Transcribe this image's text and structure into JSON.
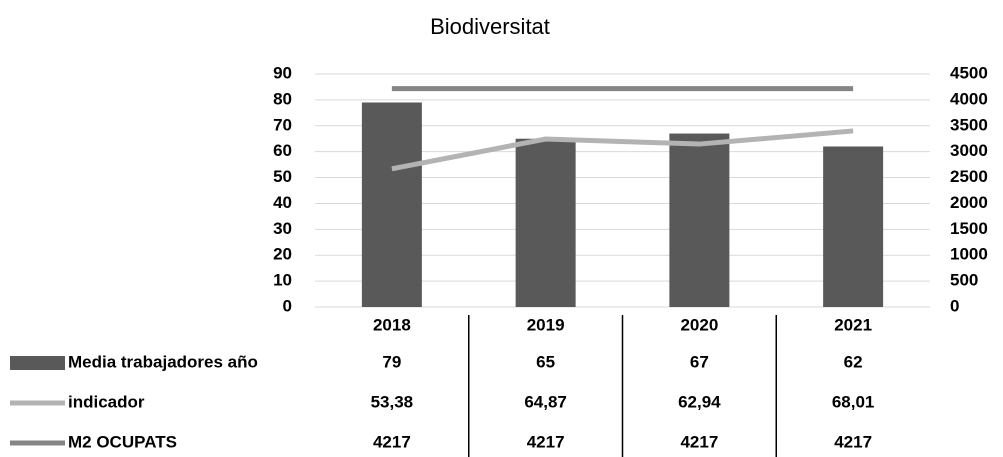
{
  "chart_data": {
    "type": "bar",
    "title": "Biodiversitat",
    "categories": [
      "2018",
      "2019",
      "2020",
      "2021"
    ],
    "series": [
      {
        "name": "Media trabajadores año",
        "type": "bar",
        "color": "#595959",
        "values": [
          79,
          65,
          67,
          62
        ]
      },
      {
        "name": "indicador",
        "type": "line",
        "color": "#b3b3b3",
        "values": [
          53.38,
          64.87,
          62.94,
          68.01
        ],
        "value_labels": [
          "53,38",
          "64,87",
          "62,94",
          "68,01"
        ]
      },
      {
        "name": "M2 OCUPATS",
        "type": "line",
        "axis": "y2",
        "color": "#858585",
        "values": [
          4217,
          4217,
          4217,
          4217
        ]
      }
    ],
    "ylim": [
      0,
      90
    ],
    "yticks": [
      0,
      10,
      20,
      30,
      40,
      50,
      60,
      70,
      80,
      90
    ],
    "y2lim": [
      0,
      4500
    ],
    "y2ticks": [
      0,
      500,
      1000,
      1500,
      2000,
      2500,
      3000,
      3500,
      4000,
      4500
    ],
    "grid": true
  }
}
